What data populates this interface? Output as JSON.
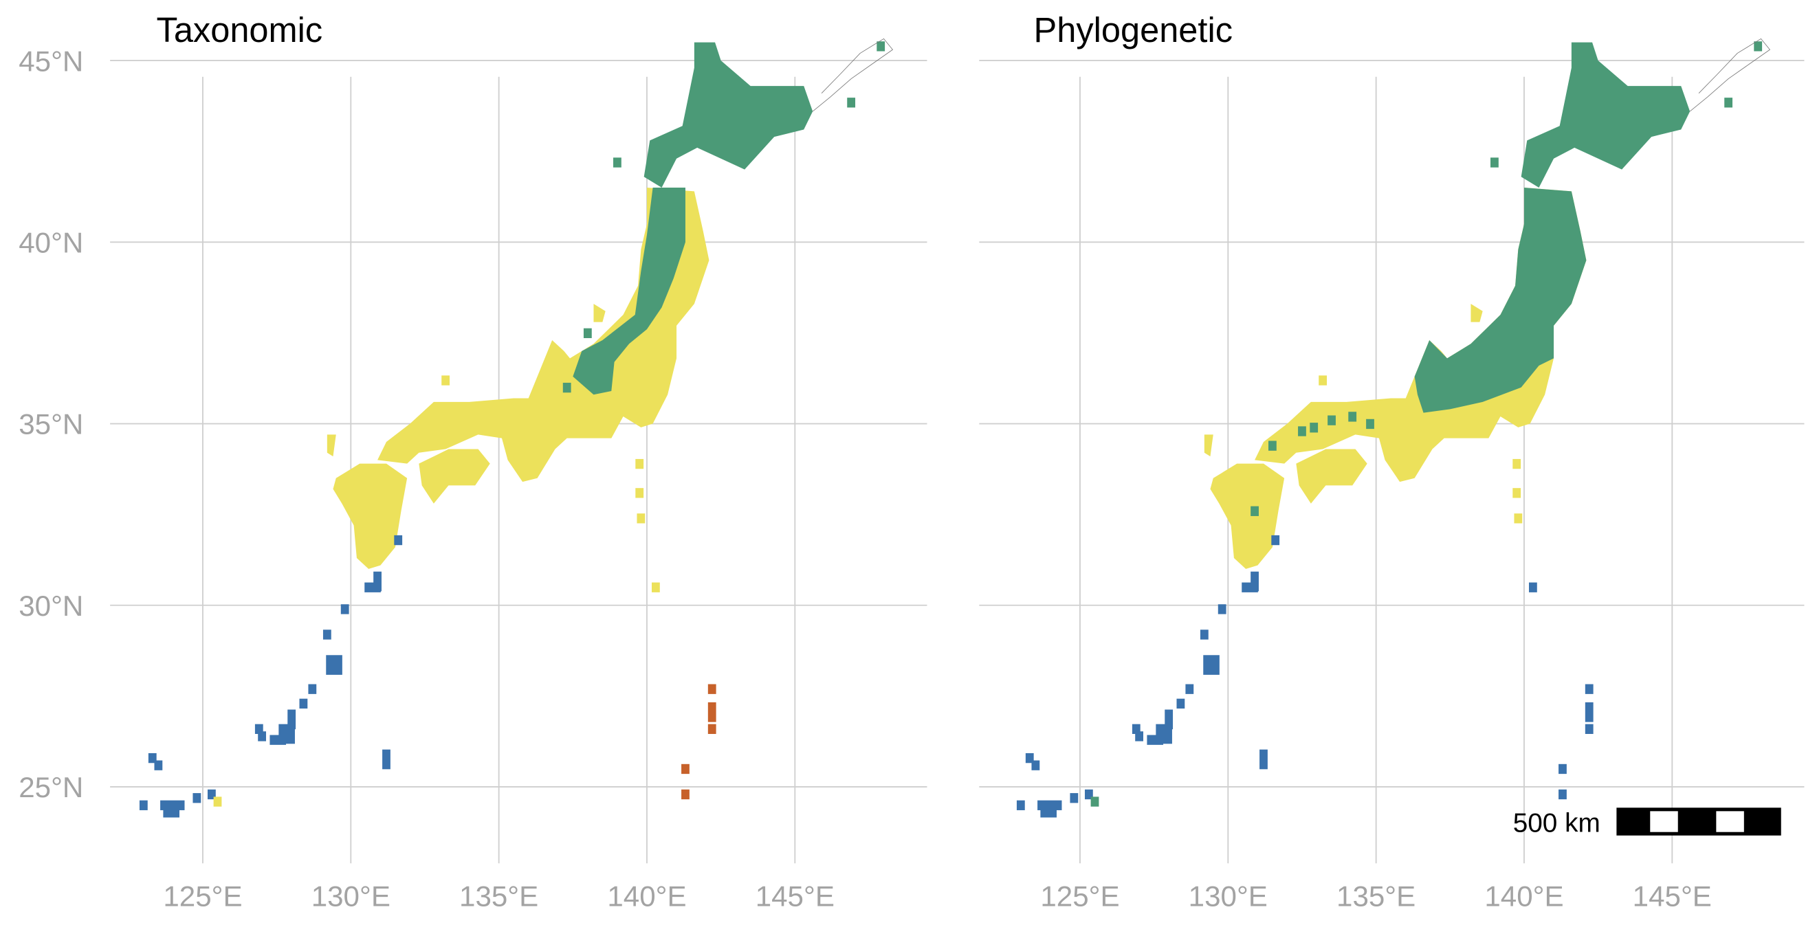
{
  "panels": [
    {
      "title": "Taxonomic",
      "show_lat_labels": true,
      "bonin_class": "orange"
    },
    {
      "title": "Phylogenetic",
      "show_lat_labels": false,
      "bonin_class": "blue"
    }
  ],
  "axes": {
    "lon_ticks": [
      125,
      130,
      135,
      140,
      145
    ],
    "lon_labels": [
      "125°E",
      "130°E",
      "135°E",
      "140°E",
      "145°E"
    ],
    "lat_ticks": [
      45,
      40,
      35,
      30,
      25
    ],
    "lat_labels": [
      "45°N",
      "40°N",
      "35°N",
      "30°N",
      "25°N"
    ]
  },
  "scale_bar": {
    "label": "500 km"
  },
  "colors": {
    "green": "#4b9a77",
    "yellow": "#ece15b",
    "blue": "#3a72ad",
    "orange": "#c7612a",
    "grid": "#cfcfcf",
    "tick_text": "#a3a3a3"
  }
}
